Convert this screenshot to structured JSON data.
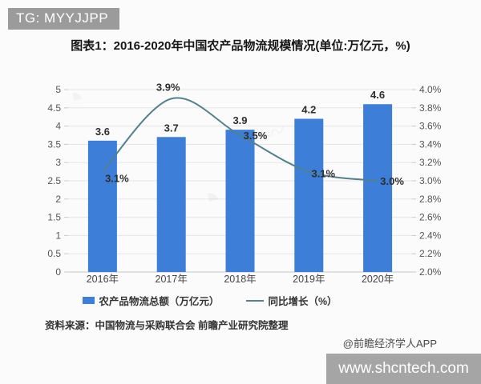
{
  "overlays": {
    "tg_badge": "TG: MYYJJPP",
    "site_badge": "www.shcntech.com",
    "credit": "@前瞻经济学人APP"
  },
  "title": "图表1：2016-2020年中国农产品物流规模情况(单位:万亿元，%)",
  "source": "资料来源：中国物流与采购联合会 前瞻产业研究院整理",
  "chart_data": {
    "type": "bar",
    "subtype": "bar+line combo, dual axis",
    "title": "图表1：2016-2020年中国农产品物流规模情况(单位:万亿元，%)",
    "categories": [
      "2016年",
      "2017年",
      "2018年",
      "2019年",
      "2020年"
    ],
    "series": [
      {
        "name": "农产品物流总额（万亿元）",
        "type": "bar",
        "axis": "left",
        "color": "#3c7ed8",
        "values": [
          3.6,
          3.7,
          3.9,
          4.2,
          4.6
        ],
        "labels": [
          "3.6",
          "3.7",
          "3.9",
          "4.2",
          "4.6"
        ]
      },
      {
        "name": "同比增长（%）",
        "type": "line",
        "axis": "right",
        "color": "#51808f",
        "values": [
          3.1,
          3.9,
          3.5,
          3.1,
          3.0
        ],
        "labels": [
          "3.1%",
          "3.9%",
          "3.5%",
          "3.1%",
          "3.0%"
        ]
      }
    ],
    "left_axis": {
      "min": 0,
      "max": 5,
      "step": 0.5,
      "ticks": [
        "5",
        "4.5",
        "4",
        "3.5",
        "3",
        "2.5",
        "2",
        "1.5",
        "1",
        "0.5",
        "0"
      ]
    },
    "right_axis": {
      "min": 2,
      "max": 4,
      "step": 0.2,
      "ticks": [
        "4.0%",
        "3.8%",
        "3.6%",
        "3.4%",
        "3.2%",
        "3.0%",
        "2.8%",
        "2.6%",
        "2.4%",
        "2.2%",
        "2.0%"
      ]
    },
    "grid": true,
    "legend_position": "bottom",
    "line_smooth": true
  }
}
